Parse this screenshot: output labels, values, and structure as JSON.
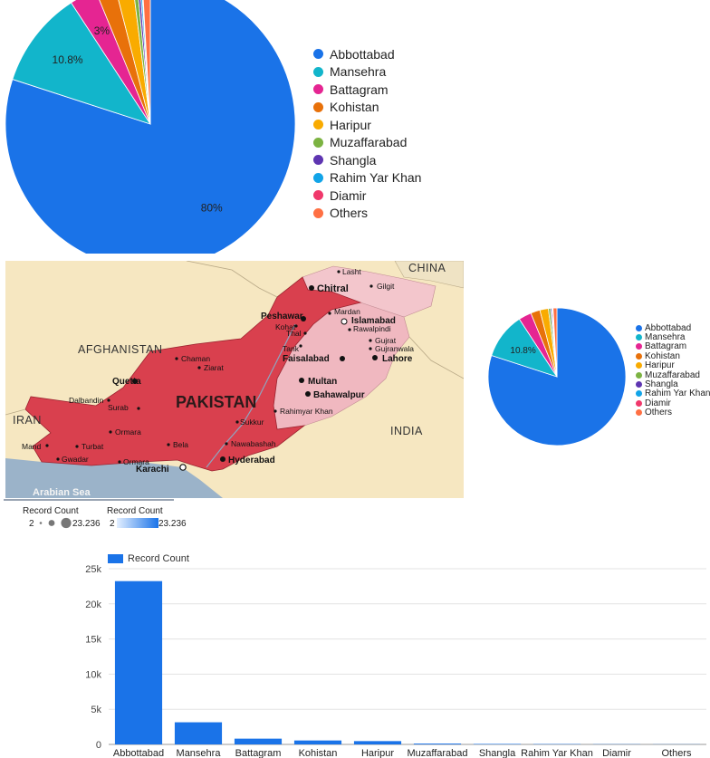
{
  "chart_data": [
    {
      "type": "pie",
      "categories": [
        "Abbottabad",
        "Mansehra",
        "Battagram",
        "Kohistan",
        "Haripur",
        "Muzaffarabad",
        "Shangla",
        "Rahim Yar Khan",
        "Diamir",
        "Others"
      ],
      "values": [
        80.0,
        10.8,
        3.0,
        2.2,
        2.0,
        0.5,
        0.3,
        0.2,
        0.1,
        0.9
      ],
      "data_labels": [
        "80%",
        "10.8%",
        "3%",
        "",
        "",
        "",
        "",
        "",
        "",
        ""
      ],
      "legend": "right"
    },
    {
      "type": "pie",
      "categories": [
        "Abbottabad",
        "Mansehra",
        "Battagram",
        "Kohistan",
        "Haripur",
        "Muzaffarabad",
        "Shangla",
        "Rahim Yar Khan",
        "Diamir",
        "Others"
      ],
      "values": [
        80.0,
        10.8,
        3.0,
        2.2,
        2.0,
        0.5,
        0.3,
        0.2,
        0.1,
        0.9
      ],
      "data_labels": [
        "",
        "10.8%",
        "",
        "",
        "",
        "",
        "",
        "",
        "",
        ""
      ],
      "legend": "right"
    },
    {
      "type": "bar",
      "categories": [
        "Abbottabad",
        "Mansehra",
        "Battagram",
        "Kohistan",
        "Haripur",
        "Muzaffarabad",
        "Shangla",
        "Rahim Yar Khan",
        "Diamir",
        "Others"
      ],
      "series": [
        {
          "name": "Record Count",
          "values": [
            23236,
            3150,
            820,
            560,
            470,
            120,
            70,
            50,
            30,
            20
          ]
        }
      ],
      "ylim": [
        0,
        25000
      ],
      "yticks": [
        "0",
        "5k",
        "10k",
        "15k",
        "20k",
        "25k"
      ],
      "grid": true,
      "legend": "top-left"
    }
  ],
  "colors": [
    "#1a73e8",
    "#12b5cb",
    "#e52592",
    "#e8710a",
    "#f9ab00",
    "#7cb342",
    "#5e35b1",
    "#12a4e8",
    "#f0386b",
    "#ff7043"
  ],
  "map": {
    "countries": [
      "CHINA",
      "AFGHANISTAN",
      "IRAN",
      "INDIA",
      "PAKISTAN"
    ],
    "sea": "Arabian Sea",
    "cities": [
      "Lasht",
      "Gilgit",
      "Chitral",
      "Peshawar",
      "Mardan",
      "Islamabad",
      "Kohat",
      "Rawalpindi",
      "Thal",
      "Gujrat",
      "Gujranwala",
      "Tank",
      "Faisalabad",
      "Lahore",
      "Chaman",
      "Ziarat",
      "Quetta",
      "Multan",
      "Bahawalpur",
      "Dalbandin",
      "Surab",
      "Rahimyar Khan",
      "Sukkur",
      "Ormara",
      "Mand",
      "Turbat",
      "Bela",
      "Nawabashah",
      "Gwadar",
      "Ormara",
      "Hyderabad",
      "Karachi"
    ]
  },
  "map_legend": {
    "size_title": "Record Count",
    "size_min": "2",
    "size_max": "23.236",
    "color_title": "Record Count",
    "color_min": "2",
    "color_max": "23.236"
  }
}
